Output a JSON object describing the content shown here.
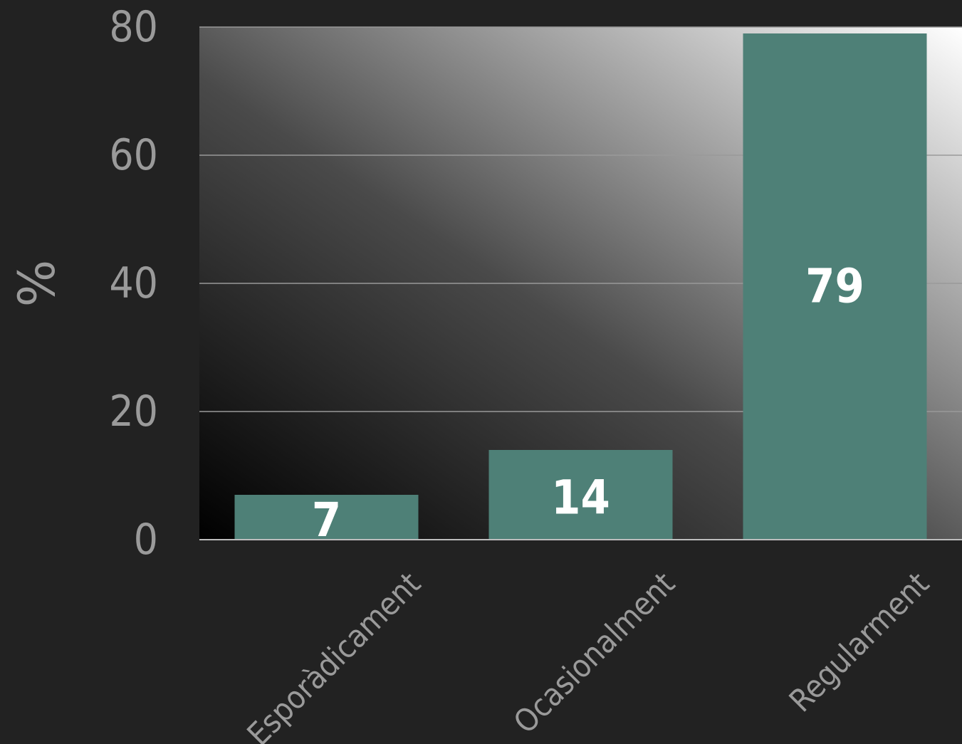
{
  "chart_data": {
    "type": "bar",
    "categories": [
      "Esporàdicament",
      "Ocasionalment",
      "Regularment"
    ],
    "values": [
      7,
      14,
      79
    ],
    "title": "",
    "xlabel": "",
    "ylabel": "%",
    "ylim": [
      0,
      80
    ],
    "yticks": [
      0,
      20,
      40,
      60,
      80
    ],
    "grid": true,
    "data_labels": true,
    "legend": "none",
    "colors": {
      "bar": "#4e8077",
      "background": "#222222",
      "gridline": "#9a9a9a",
      "label": "#9a9a9a",
      "data_label": "#ffffff"
    }
  }
}
